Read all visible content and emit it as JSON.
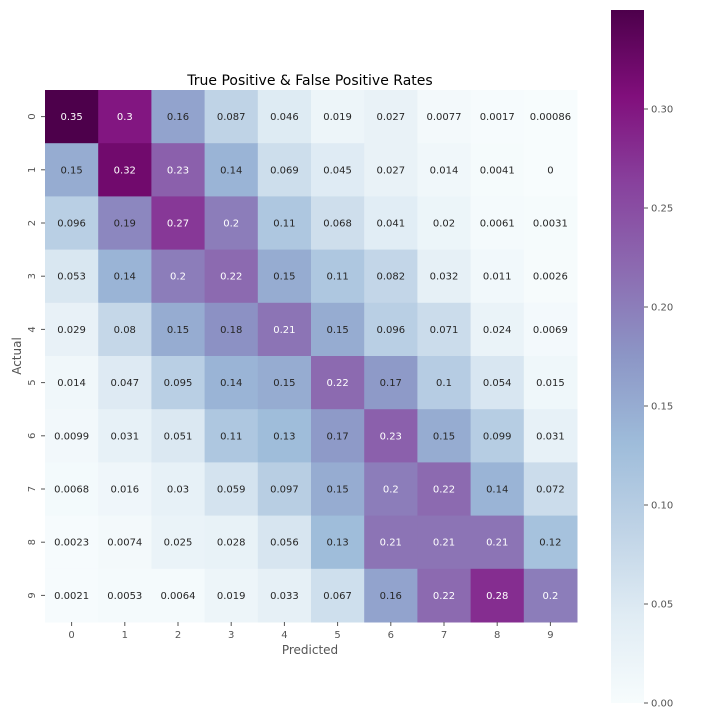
{
  "chart_data": {
    "type": "heatmap",
    "title": "True Positive & False Positive Rates",
    "xlabel": "Predicted",
    "ylabel": "Actual",
    "x_ticks": [
      "0",
      "1",
      "2",
      "3",
      "4",
      "5",
      "6",
      "7",
      "8",
      "9"
    ],
    "y_ticks": [
      "0",
      "1",
      "2",
      "3",
      "4",
      "5",
      "6",
      "7",
      "8",
      "9"
    ],
    "values": [
      [
        0.35,
        0.3,
        0.16,
        0.087,
        0.046,
        0.019,
        0.027,
        0.0077,
        0.0017,
        0.00086
      ],
      [
        0.15,
        0.32,
        0.23,
        0.14,
        0.069,
        0.045,
        0.027,
        0.014,
        0.0041,
        0
      ],
      [
        0.096,
        0.19,
        0.27,
        0.2,
        0.11,
        0.068,
        0.041,
        0.02,
        0.0061,
        0.0031
      ],
      [
        0.053,
        0.14,
        0.2,
        0.22,
        0.15,
        0.11,
        0.082,
        0.032,
        0.011,
        0.0026
      ],
      [
        0.029,
        0.08,
        0.15,
        0.18,
        0.21,
        0.15,
        0.096,
        0.071,
        0.024,
        0.0069
      ],
      [
        0.014,
        0.047,
        0.095,
        0.14,
        0.15,
        0.22,
        0.17,
        0.1,
        0.054,
        0.015
      ],
      [
        0.0099,
        0.031,
        0.051,
        0.11,
        0.13,
        0.17,
        0.23,
        0.15,
        0.099,
        0.031
      ],
      [
        0.0068,
        0.016,
        0.03,
        0.059,
        0.097,
        0.15,
        0.2,
        0.22,
        0.14,
        0.072
      ],
      [
        0.0023,
        0.0074,
        0.025,
        0.028,
        0.056,
        0.13,
        0.21,
        0.21,
        0.21,
        0.12
      ],
      [
        0.0021,
        0.0053,
        0.0064,
        0.019,
        0.033,
        0.067,
        0.16,
        0.22,
        0.28,
        0.2
      ]
    ],
    "colormap": "BuPu",
    "colorbar": {
      "vmin": 0,
      "vmax": 0.35,
      "ticks": [
        0,
        0.05,
        0.1,
        0.15,
        0.2,
        0.25,
        0.3
      ],
      "tick_labels": [
        "0.00",
        "0.05",
        "0.10",
        "0.15",
        "0.20",
        "0.25",
        "0.30"
      ]
    },
    "grid": false
  }
}
